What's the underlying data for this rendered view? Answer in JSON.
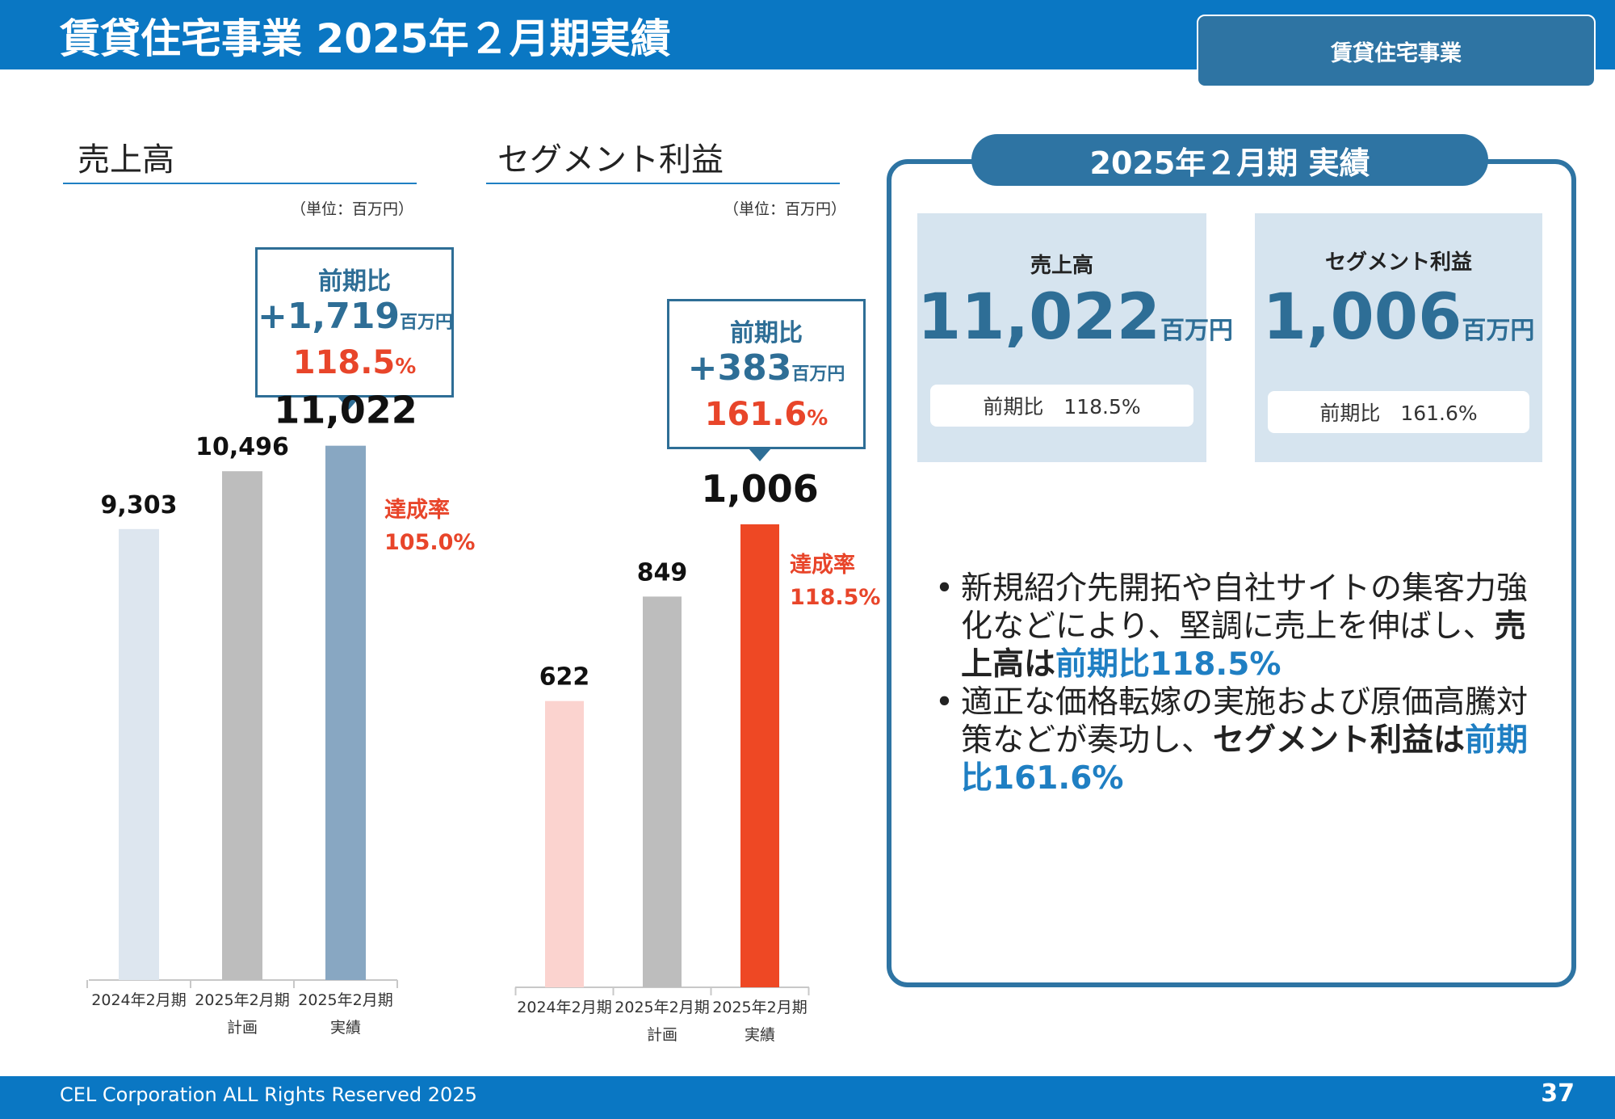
{
  "header": {
    "title": "賃貸住宅事業 2025年２月期実績",
    "tag": "賃貸住宅事業"
  },
  "sales_section": {
    "title": "売上高",
    "unit": "（単位：百万円）",
    "callout": {
      "label": "前期比",
      "diff": "+1,719",
      "diff_unit": "百万円",
      "rate": "118.5",
      "rate_unit": "%"
    },
    "achievement": {
      "label": "達成率",
      "value": "105.0%"
    }
  },
  "profit_section": {
    "title": "セグメント利益",
    "unit": "（単位：百万円）",
    "callout": {
      "label": "前期比",
      "diff": "+383",
      "diff_unit": "百万円",
      "rate": "161.6",
      "rate_unit": "%"
    },
    "achievement": {
      "label": "達成率",
      "value": "118.5%"
    }
  },
  "chart_data": [
    {
      "type": "bar",
      "title": "売上高",
      "categories": [
        [
          "2024年2月期"
        ],
        [
          "2025年2月期",
          "計画"
        ],
        [
          "2025年2月期",
          "実績"
        ]
      ],
      "values": [
        9303,
        10496,
        11022
      ],
      "value_labels": [
        "9,303",
        "10,496",
        "11,022"
      ],
      "colors": [
        "#dde6ef",
        "#bdbdbd",
        "#88a7c2"
      ],
      "ylim": [
        0,
        11800
      ]
    },
    {
      "type": "bar",
      "title": "セグメント利益",
      "categories": [
        [
          "2024年2月期"
        ],
        [
          "2025年2月期",
          "計画"
        ],
        [
          "2025年2月期",
          "実績"
        ]
      ],
      "values": [
        622,
        849,
        1006
      ],
      "value_labels": [
        "622",
        "849",
        "1,006"
      ],
      "colors": [
        "#fbd3cf",
        "#bdbdbd",
        "#ee4824"
      ],
      "ylim": [
        0,
        1120
      ]
    }
  ],
  "results_panel": {
    "title": "2025年２月期 実績",
    "sales": {
      "label": "売上高",
      "value": "11,022",
      "unit": "百万円",
      "yoy": "前期比　118.5%"
    },
    "profit": {
      "label": "セグメント利益",
      "value": "1,006",
      "unit": "百万円",
      "yoy": "前期比　161.6%"
    },
    "bullet1": {
      "text": "新規紹介先開拓や自社サイトの集客力強化などにより、堅調に売上を伸ばし、",
      "bold": "売上高は",
      "blue": "前期比118.5%"
    },
    "bullet2": {
      "text": "適正な価格転嫁の実施および原価高騰対策などが奏功し、",
      "bold": "セグメント利益は",
      "blue": "前期比161.6%"
    }
  },
  "footer": {
    "copyright": "CEL Corporation ALL Rights Reserved 2025",
    "page": "37"
  }
}
